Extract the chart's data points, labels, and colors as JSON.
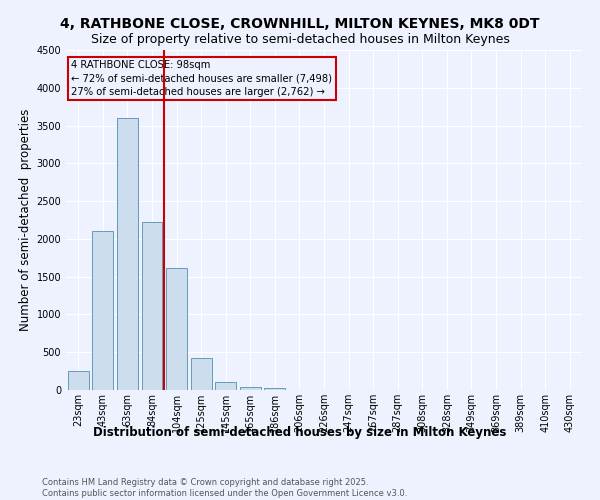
{
  "title1": "4, RATHBONE CLOSE, CROWNHILL, MILTON KEYNES, MK8 0DT",
  "title2": "Size of property relative to semi-detached houses in Milton Keynes",
  "categories": [
    "23sqm",
    "43sqm",
    "63sqm",
    "84sqm",
    "104sqm",
    "125sqm",
    "145sqm",
    "165sqm",
    "186sqm",
    "206sqm",
    "226sqm",
    "247sqm",
    "267sqm",
    "287sqm",
    "308sqm",
    "328sqm",
    "349sqm",
    "369sqm",
    "389sqm",
    "410sqm",
    "430sqm"
  ],
  "values": [
    250,
    2100,
    3600,
    2230,
    1620,
    430,
    110,
    45,
    20,
    0,
    0,
    0,
    0,
    0,
    0,
    0,
    0,
    0,
    0,
    0,
    0
  ],
  "bar_color": "#ccdded",
  "bar_edge_color": "#6699bb",
  "property_line_x": 3.5,
  "property_label": "4 RATHBONE CLOSE: 98sqm",
  "annotation_line1": "← 72% of semi-detached houses are smaller (7,498)",
  "annotation_line2": "27% of semi-detached houses are larger (2,762) →",
  "annotation_box_color": "#cc0000",
  "ylabel": "Number of semi-detached  properties",
  "xlabel": "Distribution of semi-detached houses by size in Milton Keynes",
  "ylim": [
    0,
    4500
  ],
  "yticks": [
    0,
    500,
    1000,
    1500,
    2000,
    2500,
    3000,
    3500,
    4000,
    4500
  ],
  "footnote1": "Contains HM Land Registry data © Crown copyright and database right 2025.",
  "footnote2": "Contains public sector information licensed under the Open Government Licence v3.0.",
  "background_color": "#eef2ff",
  "grid_color": "#ffffff",
  "title1_fontsize": 10,
  "title2_fontsize": 9,
  "axis_label_fontsize": 8.5,
  "tick_fontsize": 7
}
